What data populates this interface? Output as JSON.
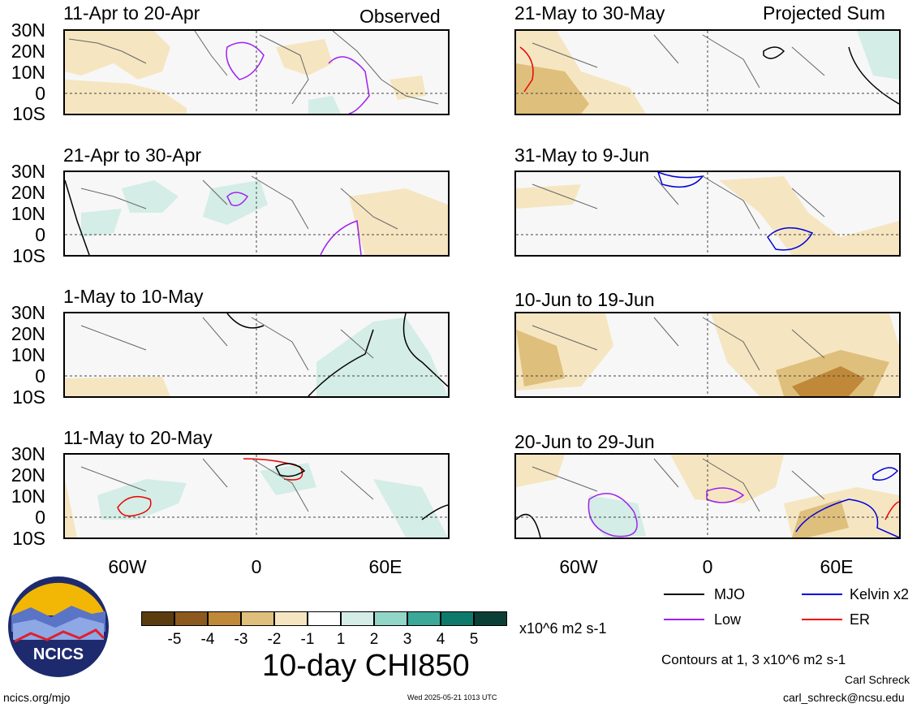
{
  "header": {
    "left_title": "Observed",
    "right_title": "Projected Sum"
  },
  "lat_labels": [
    "30N",
    "20N",
    "10N",
    "0",
    "10S"
  ],
  "lon_labels": [
    "60W",
    "0",
    "60E"
  ],
  "panels": [
    {
      "title": "11-Apr to 20-Apr"
    },
    {
      "title": "21-Apr to 30-Apr"
    },
    {
      "title": "1-May to 10-May"
    },
    {
      "title": "11-May to 20-May"
    },
    {
      "title": "21-May to 30-May"
    },
    {
      "title": "31-May to 9-Jun"
    },
    {
      "title": "10-Jun to 19-Jun"
    },
    {
      "title": "20-Jun to 29-Jun"
    }
  ],
  "colorbar": {
    "colors": [
      "#5a3c0f",
      "#8c5a1e",
      "#c08839",
      "#dfbf7c",
      "#f5e6c1",
      "#ffffff",
      "#d4ede6",
      "#92d6c8",
      "#3ba898",
      "#0e7a6c",
      "#0a3f36"
    ],
    "labels": [
      "-5",
      "-4",
      "-3",
      "-2",
      "-1",
      "1",
      "2",
      "3",
      "4",
      "5"
    ],
    "units": "x10^6 m2 s-1"
  },
  "main_title": "10-day CHI850",
  "legend": {
    "items": [
      {
        "label": "MJO",
        "color": "#000000"
      },
      {
        "label": "Kelvin x2",
        "color": "#0000dd"
      },
      {
        "label": "Low",
        "color": "#a020f0"
      },
      {
        "label": "ER",
        "color": "#ee0000"
      }
    ],
    "contour_note": "Contours at 1, 3 x10^6 m2 s-1"
  },
  "logo": {
    "text": "NCICS"
  },
  "footer": {
    "site": "ncics.org/mjo",
    "timestamp": "Wed 2025-05-21 1013 UTC",
    "author": "Carl Schreck",
    "email": "carl_schreck@ncsu.edu"
  }
}
